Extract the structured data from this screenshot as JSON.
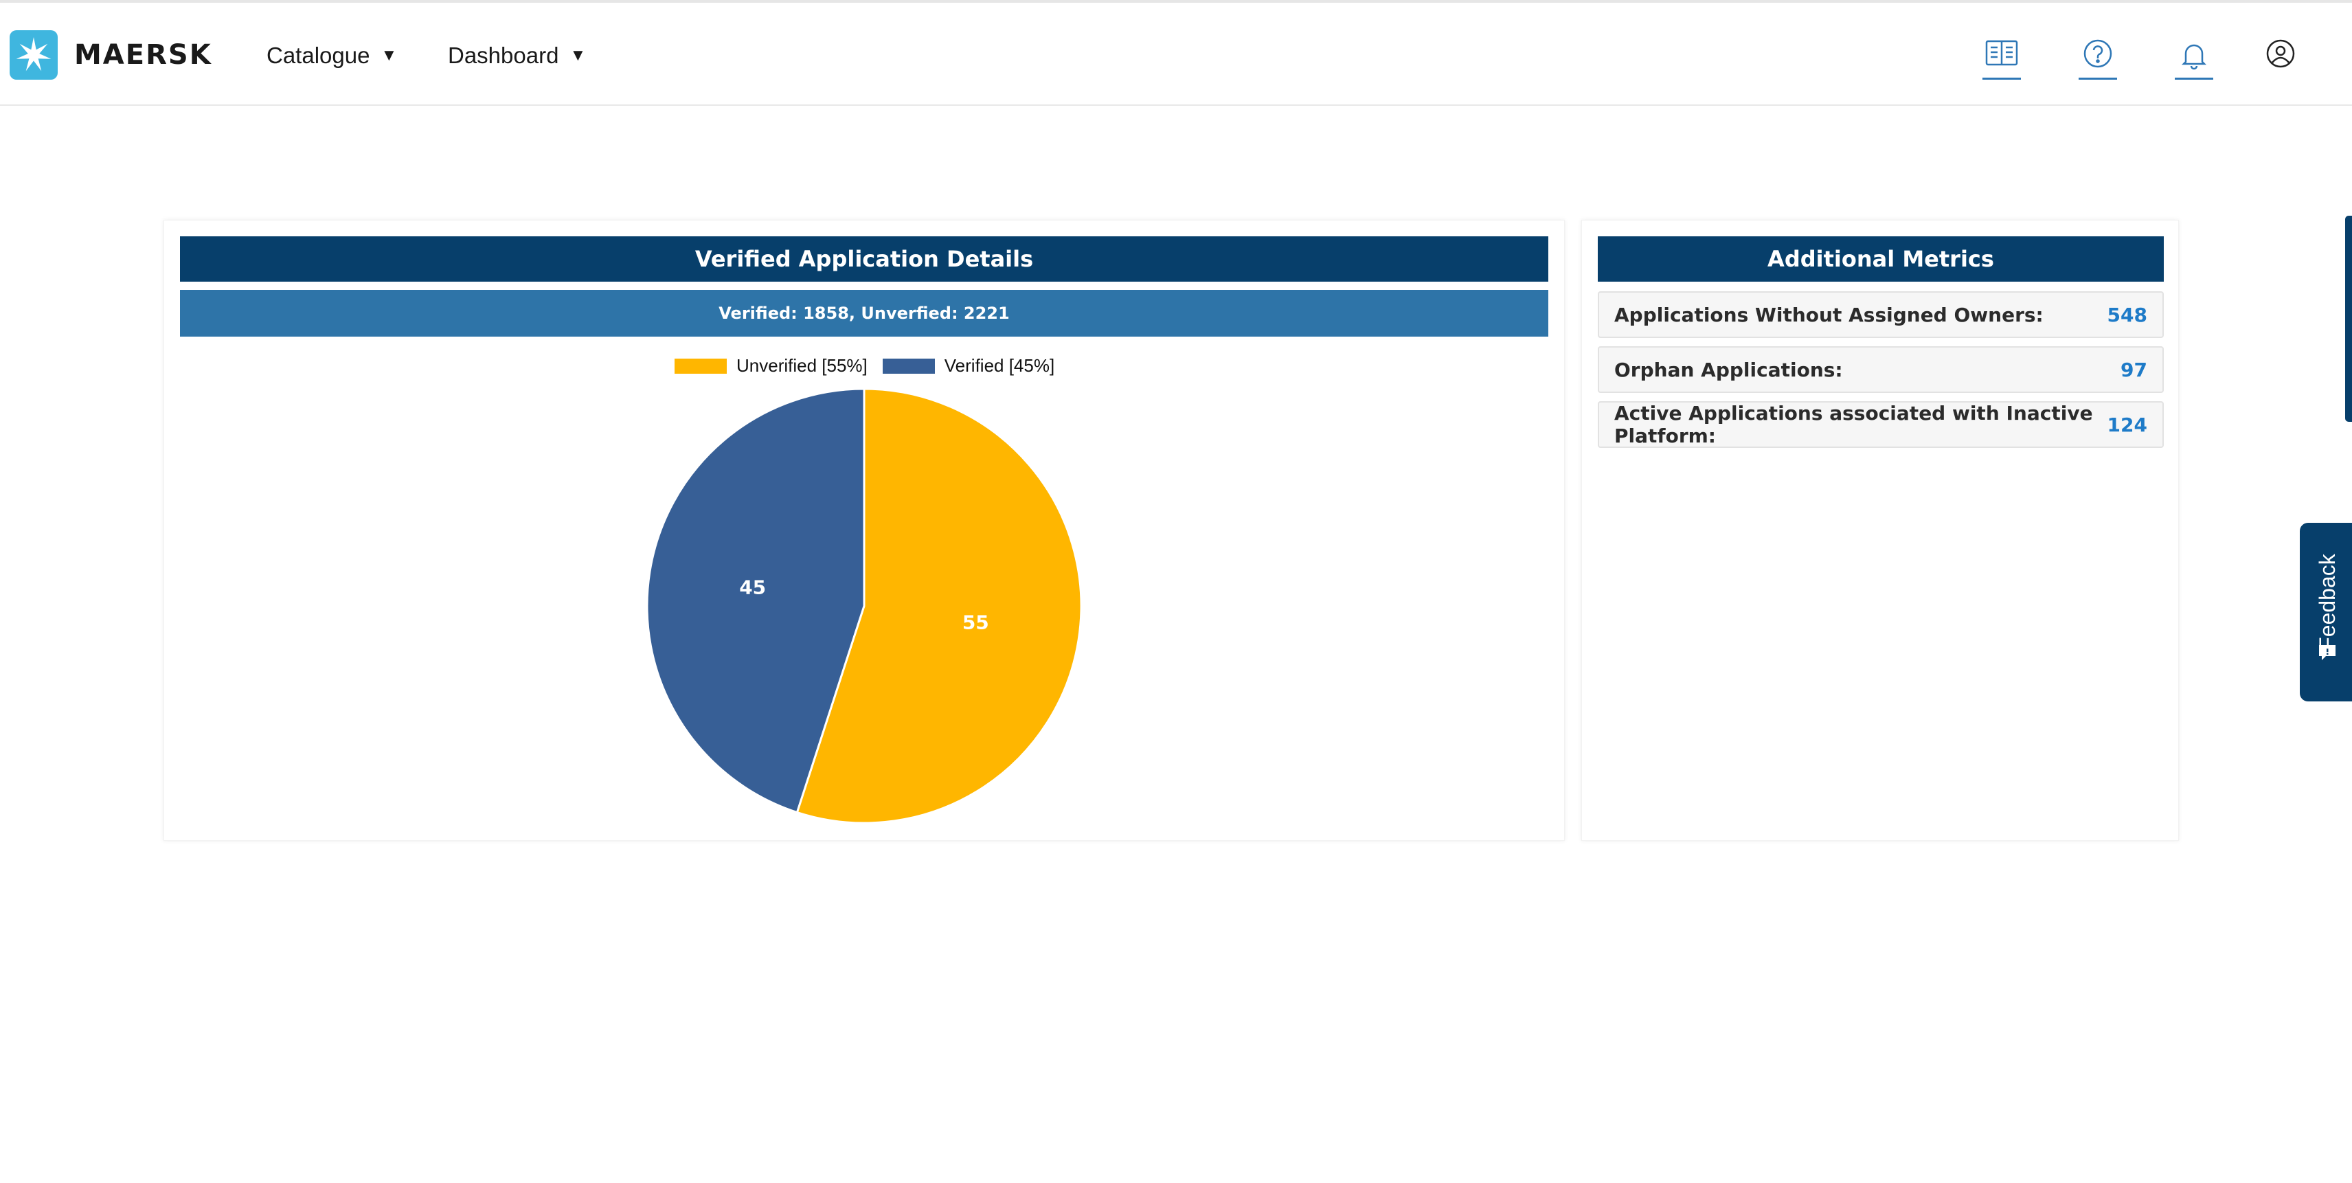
{
  "header": {
    "brand": "MAERSK",
    "nav": [
      {
        "label": "Catalogue",
        "caret": "▼"
      },
      {
        "label": "Dashboard",
        "caret": "▼"
      }
    ],
    "icons": [
      "book-icon",
      "help-icon",
      "bell-icon",
      "user-icon"
    ]
  },
  "left_panel": {
    "title": "Verified Application Details",
    "summary": "Verified: 1858, Unverfied: 2221",
    "legend": [
      {
        "label": "Unverified [55%]",
        "color": "#ffb600"
      },
      {
        "label": "Verified [45%]",
        "color": "#375f96"
      }
    ]
  },
  "chart_data": {
    "type": "pie",
    "slices": [
      {
        "label": "Unverified",
        "value": 55,
        "color": "#ffb600",
        "data_label": "55"
      },
      {
        "label": "Verified",
        "value": 45,
        "color": "#375f96",
        "data_label": "45"
      }
    ],
    "legend_position": "top"
  },
  "right_panel": {
    "title": "Additional Metrics",
    "metrics": [
      {
        "label": "Applications Without Assigned Owners:",
        "value": "548"
      },
      {
        "label": "Orphan Applications:",
        "value": "97"
      },
      {
        "label": "Active Applications associated with Inactive Platform:",
        "value": "124"
      }
    ]
  },
  "feedback": {
    "label": "Feedback"
  },
  "colors": {
    "navy": "#073f6b",
    "banner_blue": "#2e74a8",
    "link_blue": "#1e7bc8",
    "brand_cyan": "#3fb6df"
  }
}
